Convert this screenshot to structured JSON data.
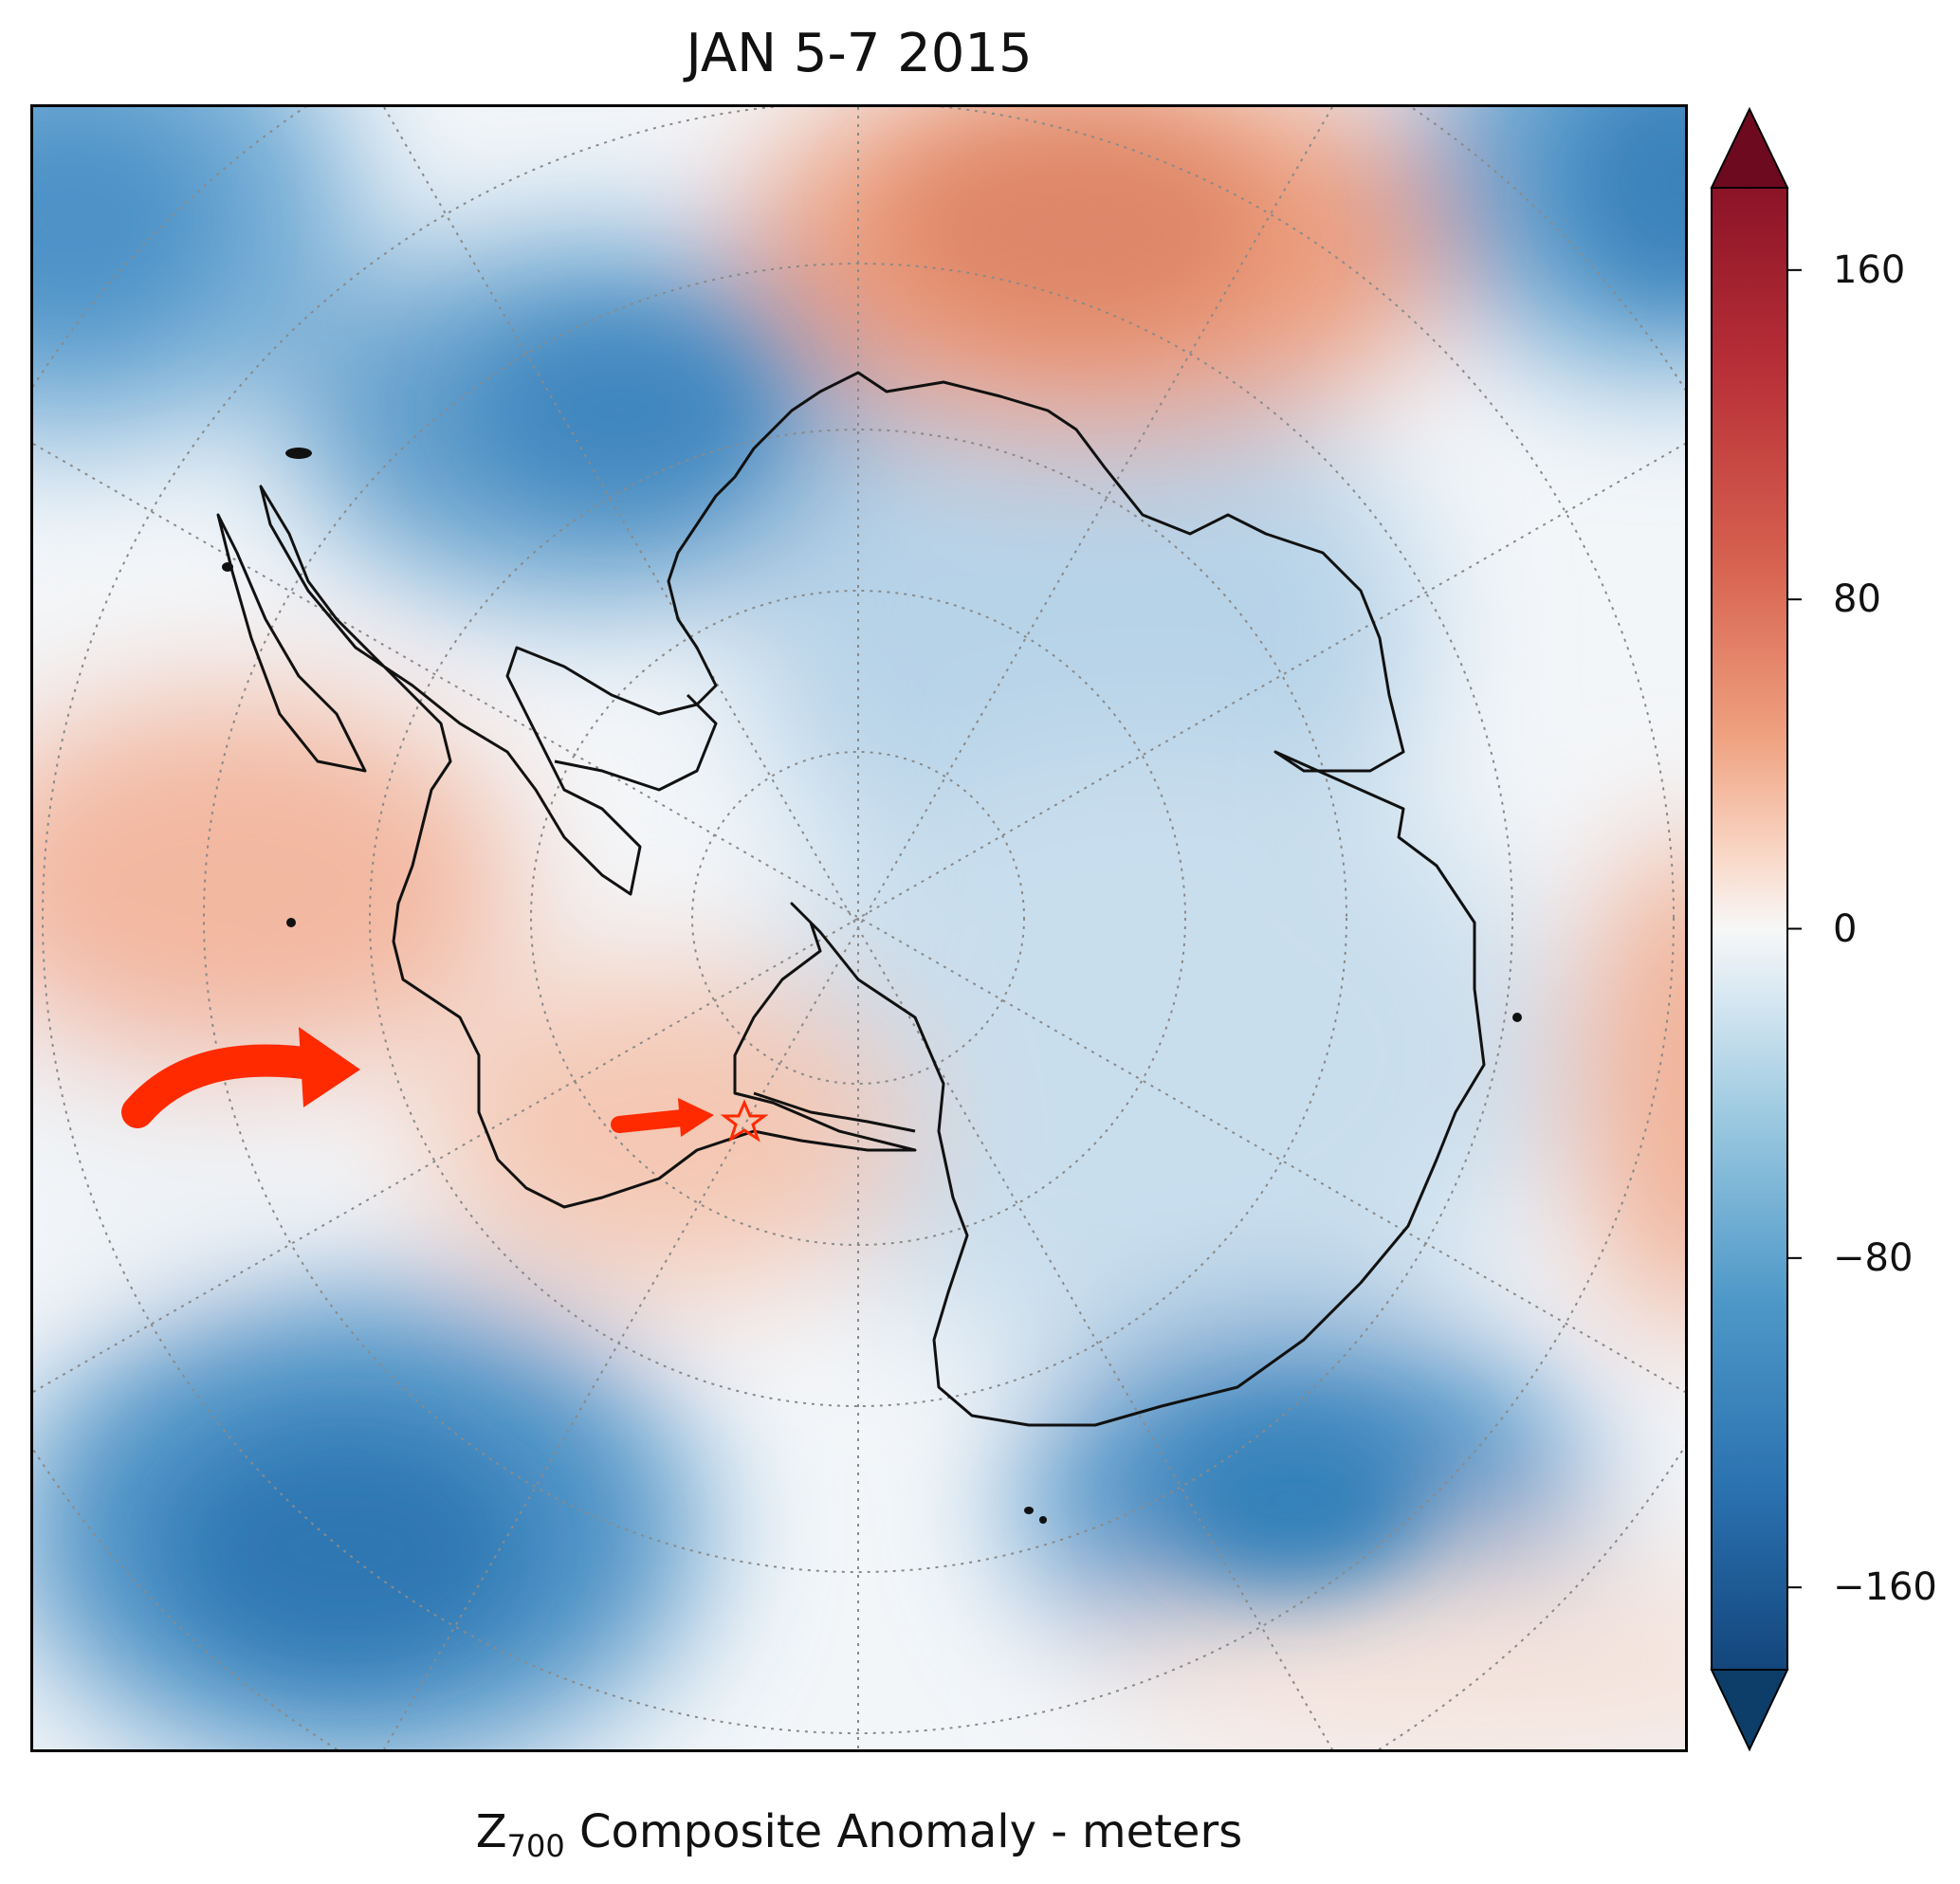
{
  "map": {
    "title": "JAN 5-7 2015",
    "projection": "south-polar-stereographic",
    "graticule": "dotted",
    "annotations": [
      {
        "type": "curved-arrow",
        "color": "#ff2a00"
      },
      {
        "type": "straight-arrow",
        "color": "#ff2a00"
      },
      {
        "type": "star-marker",
        "color": "#ff2a00"
      }
    ]
  },
  "colorbar": {
    "label_main": "Z",
    "label_sub": "700",
    "label_rest": " Composite Anomaly - meters",
    "colormap": "RdBu_r",
    "extend": "both",
    "range": [
      -180,
      180
    ],
    "ticks": [
      {
        "value": 160,
        "label": "160"
      },
      {
        "value": 80,
        "label": "80"
      },
      {
        "value": 0,
        "label": "0"
      },
      {
        "value": -80,
        "label": "−80"
      },
      {
        "value": -160,
        "label": "−160"
      }
    ],
    "colors": {
      "deep_red": "#6d0a1f",
      "red": "#c33a3d",
      "orange": "#f0a07c",
      "white": "#f7f7f7",
      "light_blue": "#aed0e6",
      "blue": "#3d87bf",
      "deep_blue": "#0c3e69"
    }
  }
}
